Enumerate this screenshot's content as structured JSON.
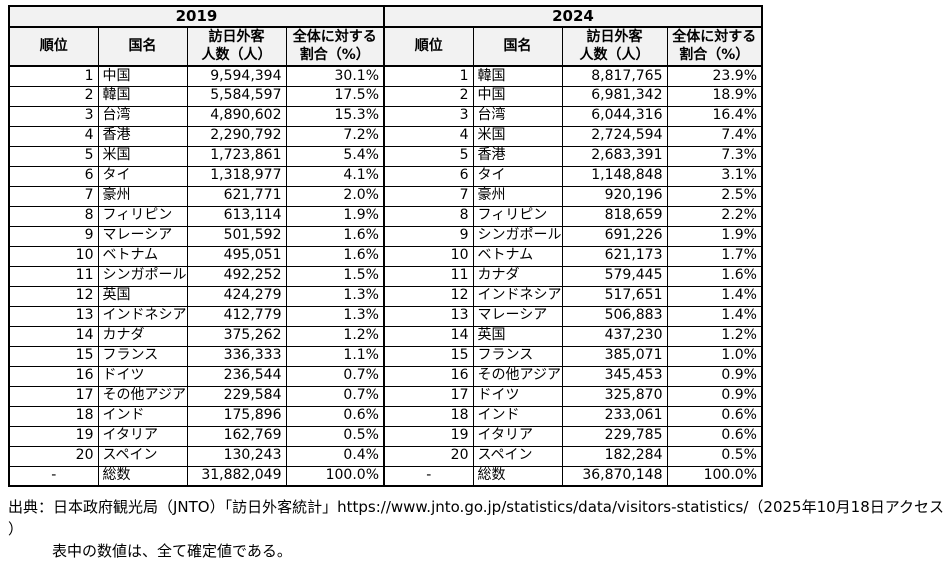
{
  "chart_data": {
    "type": "table",
    "title": "",
    "groups": [
      {
        "year": "2019",
        "columns": [
          "順位",
          "国名",
          "訪日外客\n人数（人）",
          "全体に対する\n割合（%）"
        ],
        "rows": [
          [
            "1",
            "中国",
            "9,594,394",
            "30.1%"
          ],
          [
            "2",
            "韓国",
            "5,584,597",
            "17.5%"
          ],
          [
            "3",
            "台湾",
            "4,890,602",
            "15.3%"
          ],
          [
            "4",
            "香港",
            "2,290,792",
            "7.2%"
          ],
          [
            "5",
            "米国",
            "1,723,861",
            "5.4%"
          ],
          [
            "6",
            "タイ",
            "1,318,977",
            "4.1%"
          ],
          [
            "7",
            "豪州",
            "621,771",
            "2.0%"
          ],
          [
            "8",
            "フィリピン",
            "613,114",
            "1.9%"
          ],
          [
            "9",
            "マレーシア",
            "501,592",
            "1.6%"
          ],
          [
            "10",
            "ベトナム",
            "495,051",
            "1.6%"
          ],
          [
            "11",
            "シンガポール",
            "492,252",
            "1.5%"
          ],
          [
            "12",
            "英国",
            "424,279",
            "1.3%"
          ],
          [
            "13",
            "インドネシア",
            "412,779",
            "1.3%"
          ],
          [
            "14",
            "カナダ",
            "375,262",
            "1.2%"
          ],
          [
            "15",
            "フランス",
            "336,333",
            "1.1%"
          ],
          [
            "16",
            "ドイツ",
            "236,544",
            "0.7%"
          ],
          [
            "17",
            "その他アジア",
            "229,584",
            "0.7%"
          ],
          [
            "18",
            "インド",
            "175,896",
            "0.6%"
          ],
          [
            "19",
            "イタリア",
            "162,769",
            "0.5%"
          ],
          [
            "20",
            "スペイン",
            "130,243",
            "0.4%"
          ],
          [
            "-",
            "総数",
            "31,882,049",
            "100.0%"
          ]
        ]
      },
      {
        "year": "2024",
        "columns": [
          "順位",
          "国名",
          "訪日外客\n人数（人）",
          "全体に対する\n割合（%）"
        ],
        "rows": [
          [
            "1",
            "韓国",
            "8,817,765",
            "23.9%"
          ],
          [
            "2",
            "中国",
            "6,981,342",
            "18.9%"
          ],
          [
            "3",
            "台湾",
            "6,044,316",
            "16.4%"
          ],
          [
            "4",
            "米国",
            "2,724,594",
            "7.4%"
          ],
          [
            "5",
            "香港",
            "2,683,391",
            "7.3%"
          ],
          [
            "6",
            "タイ",
            "1,148,848",
            "3.1%"
          ],
          [
            "7",
            "豪州",
            "920,196",
            "2.5%"
          ],
          [
            "8",
            "フィリピン",
            "818,659",
            "2.2%"
          ],
          [
            "9",
            "シンガポール",
            "691,226",
            "1.9%"
          ],
          [
            "10",
            "ベトナム",
            "621,173",
            "1.7%"
          ],
          [
            "11",
            "カナダ",
            "579,445",
            "1.6%"
          ],
          [
            "12",
            "インドネシア",
            "517,651",
            "1.4%"
          ],
          [
            "13",
            "マレーシア",
            "506,883",
            "1.4%"
          ],
          [
            "14",
            "英国",
            "437,230",
            "1.2%"
          ],
          [
            "15",
            "フランス",
            "385,071",
            "1.0%"
          ],
          [
            "16",
            "その他アジア",
            "345,453",
            "0.9%"
          ],
          [
            "17",
            "ドイツ",
            "325,870",
            "0.9%"
          ],
          [
            "18",
            "インド",
            "233,061",
            "0.6%"
          ],
          [
            "19",
            "イタリア",
            "229,785",
            "0.6%"
          ],
          [
            "20",
            "スペイン",
            "182,284",
            "0.5%"
          ],
          [
            "-",
            "総数",
            "36,870,148",
            "100.0%"
          ]
        ]
      }
    ],
    "layout": {
      "header_fill": "#f2f2f2",
      "border_color": "#000000"
    }
  },
  "footer": {
    "line1": "出典：日本政府観光局（JNTO）「訪日外客統計」https://www.jnto.go.jp/statistics/data/visitors-statistics/（2025年10月18日アクセス ）",
    "line2": "表中の数値は、全て確定値である。"
  }
}
